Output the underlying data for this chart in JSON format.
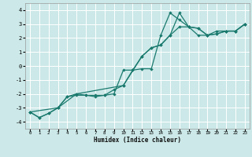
{
  "title": "",
  "xlabel": "Humidex (Indice chaleur)",
  "ylabel": "",
  "bg_color": "#cce8e8",
  "grid_color": "#ffffff",
  "line_color": "#1a7a6e",
  "xlim": [
    -0.5,
    23.5
  ],
  "ylim": [
    -4.5,
    4.5
  ],
  "xticks": [
    0,
    1,
    2,
    3,
    4,
    5,
    6,
    7,
    8,
    9,
    10,
    11,
    12,
    13,
    14,
    15,
    16,
    17,
    18,
    19,
    20,
    21,
    22,
    23
  ],
  "yticks": [
    -4,
    -3,
    -2,
    -1,
    0,
    1,
    2,
    3,
    4
  ],
  "series": [
    {
      "x": [
        0,
        1,
        2,
        3,
        4,
        5,
        6,
        7,
        8,
        9,
        10,
        11,
        12,
        13,
        14,
        15,
        16,
        17,
        18,
        19,
        20,
        21,
        22,
        23
      ],
      "y": [
        -3.3,
        -3.7,
        -3.4,
        -3.0,
        -2.2,
        -2.1,
        -2.1,
        -2.1,
        -2.1,
        -2.0,
        -0.3,
        -0.3,
        -0.2,
        -0.2,
        2.2,
        3.8,
        3.3,
        2.8,
        2.7,
        2.2,
        2.5,
        2.5,
        2.5,
        3.0
      ]
    },
    {
      "x": [
        0,
        1,
        2,
        3,
        4,
        5,
        6,
        7,
        8,
        9,
        10,
        11,
        12,
        13,
        14,
        15,
        16,
        17,
        18,
        19,
        20,
        21,
        22,
        23
      ],
      "y": [
        -3.3,
        -3.7,
        -3.4,
        -3.0,
        -2.2,
        -2.0,
        -2.1,
        -2.2,
        -2.1,
        -1.7,
        -1.4,
        -0.3,
        0.7,
        1.3,
        1.5,
        2.2,
        2.8,
        2.8,
        2.2,
        2.2,
        2.3,
        2.5,
        2.5,
        3.0
      ]
    },
    {
      "x": [
        0,
        3,
        5,
        10,
        12,
        13,
        14,
        15,
        16,
        17,
        18,
        19,
        20,
        21,
        22,
        23
      ],
      "y": [
        -3.3,
        -3.0,
        -2.0,
        -1.4,
        0.7,
        1.3,
        1.5,
        2.2,
        3.8,
        2.8,
        2.7,
        2.2,
        2.3,
        2.5,
        2.5,
        3.0
      ]
    }
  ]
}
